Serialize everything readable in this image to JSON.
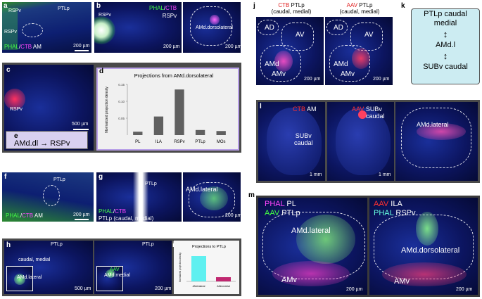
{
  "panels": {
    "a": {
      "letter": "a",
      "region_top": "RSPv",
      "region_mid": "RSPv",
      "region_right": "PTLp",
      "label_phal": "PHAL",
      "label_sep": "/",
      "label_ctb": "CTB",
      "label_am": "AM",
      "scale": "200 µm"
    },
    "b": {
      "letter": "b",
      "region_left": "RSPv",
      "label_phal": "PHAL",
      "label_sep": "/",
      "label_ctb": "CTB",
      "label_region": "RSPv",
      "inset_label": "AMd.dorsolateral",
      "scale": "200 µm"
    },
    "c": {
      "letter": "c",
      "region": "RSPv",
      "scale": "500 µm"
    },
    "d": {
      "letter": "d"
    },
    "e": {
      "letter": "e",
      "from": "AMd.dl",
      "to": "RSPv"
    },
    "f": {
      "letter": "f",
      "region": "PTLp",
      "label_phal": "PHAL",
      "label_sep": "/",
      "label_ctb": "CTB",
      "label_am": "AM",
      "scale": "200 µm"
    },
    "g": {
      "letter": "g",
      "region": "PTLp",
      "label_phal": "PHAL",
      "label_sep": "/",
      "label_ctb": "CTB",
      "label_line2": "PTLp (caudal, medial)",
      "inset_label": "AMd.lateral",
      "scale": "200 µm"
    },
    "h": {
      "letter": "h",
      "region1": "PTLp",
      "region2": "PTLp",
      "sub_label": "caudal, medial",
      "inset1": "AMd.lateral",
      "inset2_a": "AAV",
      "inset2_b": "AMd.medial",
      "scale1": "500 µm",
      "scale2": "200 µm"
    },
    "i": {
      "letter": "i"
    },
    "j": {
      "letter": "j",
      "title1_a": "CTB",
      "title1_b": "PTLp",
      "title1_c": "(caudal, medial)",
      "title2_a": "AAV",
      "title2_b": "PTLp",
      "title2_c": "(caudal, medial)",
      "ad": "AD",
      "av": "AV",
      "amd": "AMd",
      "amv": "AMv",
      "scale": "200 µm"
    },
    "k": {
      "letter": "k",
      "top": "PTLp caudal",
      "top2": "medial",
      "mid": "AMd.l",
      "bottom": "SUBv caudal"
    },
    "l": {
      "letter": "l",
      "ctb": "CTB",
      "am": "AM",
      "aav": "AAV",
      "subv": "SUBv",
      "caudal": "caudal",
      "subv2": "SUBv",
      "caudal2": "caudal",
      "inset": "AMd.lateral",
      "scale1": "1 mm",
      "scale2": "1 mm"
    },
    "m": {
      "letter": "m",
      "l1_phal": "PHAL",
      "l1_pl": "PL",
      "l1_aav": "AAV",
      "l1_ptlp": "PTLp",
      "amd_l": "AMd.lateral",
      "amv1": "AMv",
      "l2_aav": "AAV",
      "l2_ila": "ILA",
      "l2_phal": "PHAL",
      "l2_rspv": "RSPv",
      "amd_dl": "AMd.dorsolateral",
      "amv2": "AMv",
      "scale1": "200 µm",
      "scale2": "200 µm"
    }
  },
  "chart_data": [
    {
      "type": "bar",
      "title": "Projections from AMd.dorsolateral",
      "ylabel": "Normalized projection density",
      "categories": [
        "PL",
        "ILA",
        "RSPv",
        "PTLp",
        "MOs"
      ],
      "values": [
        0.01,
        0.055,
        0.135,
        0.015,
        0.012
      ],
      "ylim": [
        0,
        0.15
      ],
      "yticks": [
        "0.15",
        "0.10",
        "0.05"
      ],
      "color": "#606060"
    },
    {
      "type": "bar",
      "title": "Projections to PTLp",
      "ylabel": "Normalized projection density",
      "categories": [
        "AMd.lateral",
        "AMd.medial"
      ],
      "values": [
        0.9,
        0.15
      ],
      "ylim": [
        0,
        1
      ],
      "colors": [
        "#5ff0f0",
        "#c02870"
      ]
    }
  ]
}
